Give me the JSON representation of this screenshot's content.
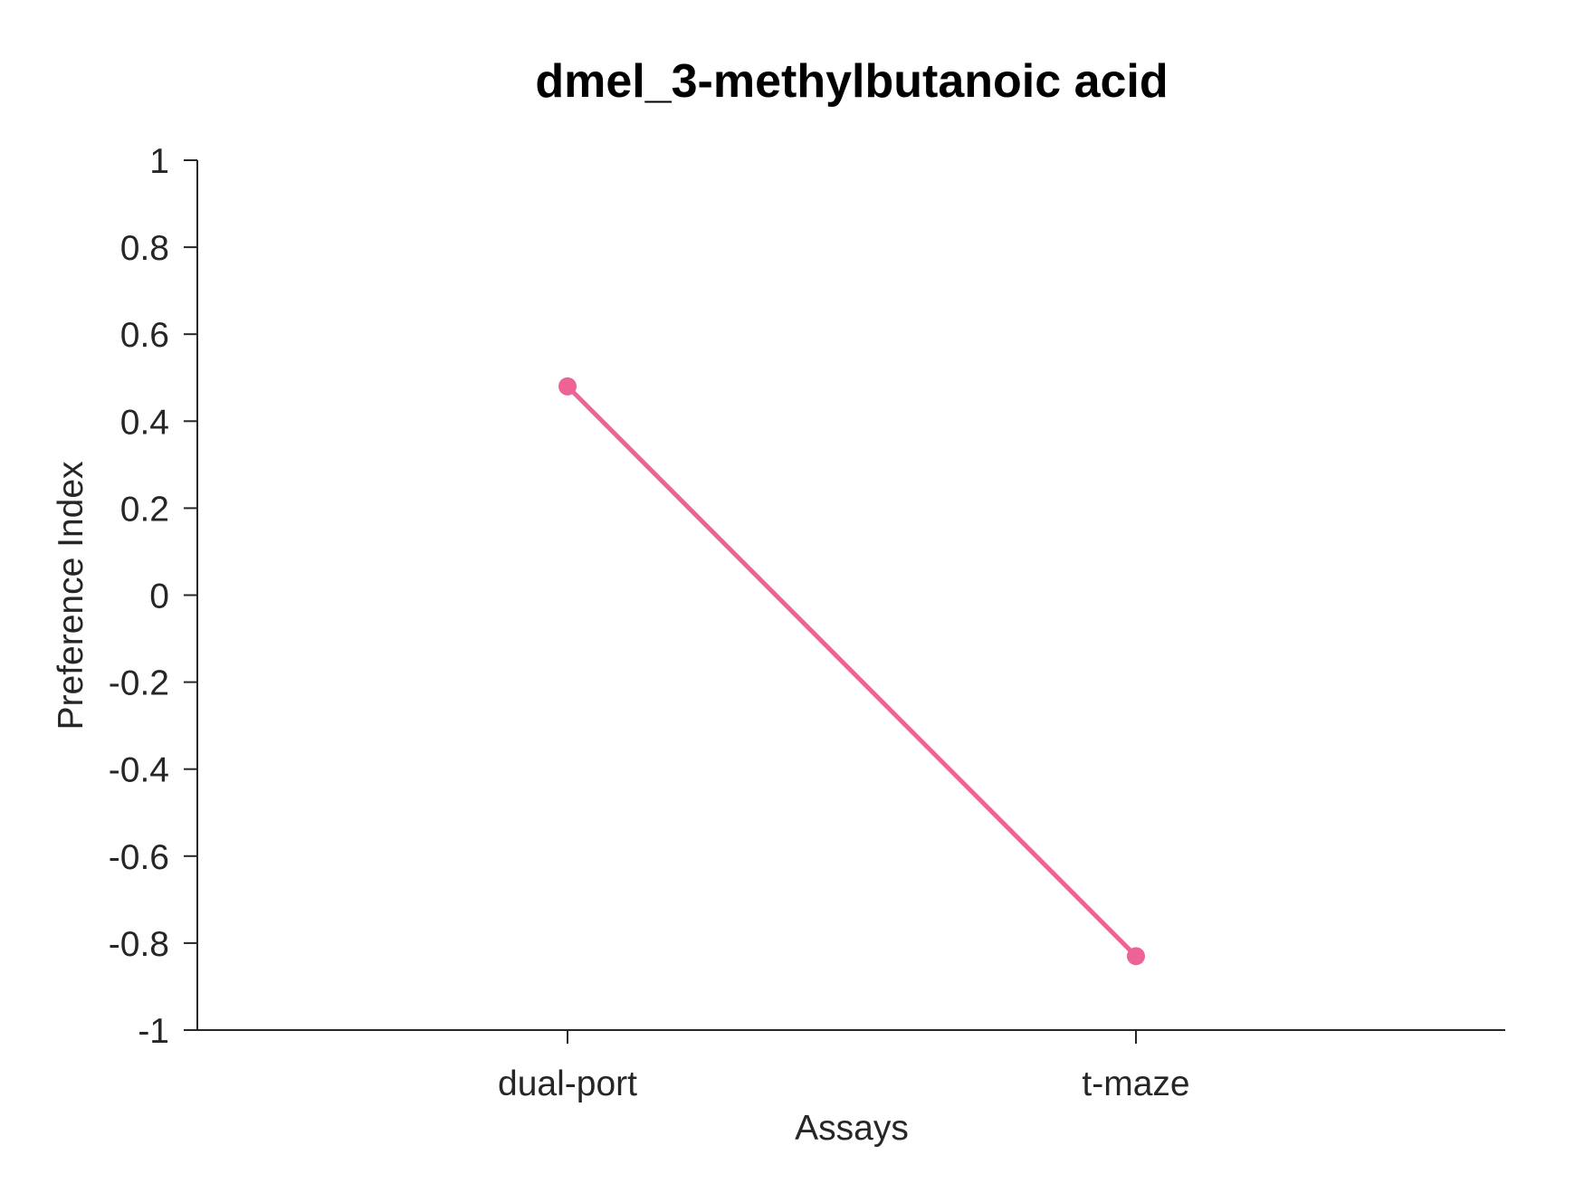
{
  "chart_data": {
    "type": "line",
    "title": "dmel_3-methylbutanoic acid",
    "xlabel": "Assays",
    "ylabel": "Preference Index",
    "categories": [
      "dual-port",
      "t-maze"
    ],
    "series": [
      {
        "values": [
          0.48,
          -0.83
        ],
        "color": "#ee6395"
      }
    ],
    "ylim": [
      -1,
      1
    ],
    "yticks": [
      1,
      0.8,
      0.6,
      0.4,
      0.2,
      0,
      -0.2,
      -0.4,
      -0.6,
      -0.8,
      -1
    ],
    "ytick_labels": [
      "1",
      "0.8",
      "0.6",
      "0.4",
      "0.2",
      "0",
      "-0.2",
      "-0.4",
      "-0.6",
      "-0.8",
      "-1"
    ],
    "grid": false,
    "legend": "none"
  }
}
